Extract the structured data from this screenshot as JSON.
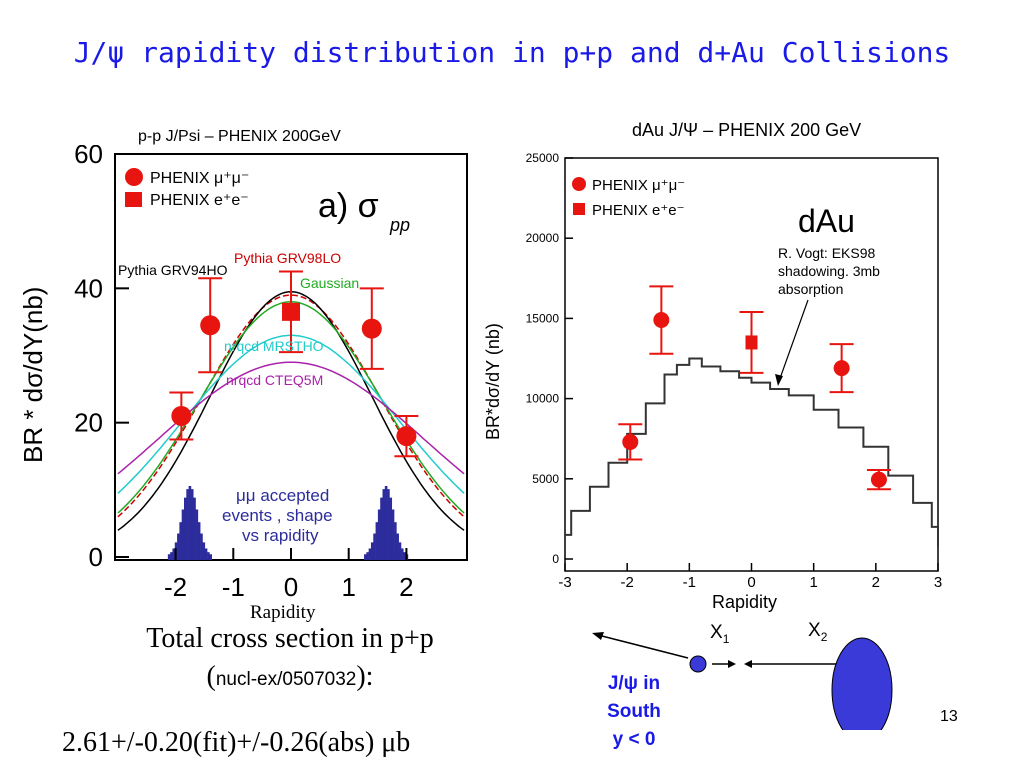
{
  "slide": {
    "title": "J/ψ rapidity distribution in p+p and d+Au Collisions",
    "page_number": "13"
  },
  "left_plot": {
    "caption": "p-p J/Psi – PHENIX 200GeV",
    "panel_label": "a) σ",
    "panel_sub": "pp",
    "legend": [
      {
        "label": "PHENIX μ⁺μ⁻",
        "marker": "circle"
      },
      {
        "label": "PHENIX e⁺e⁻",
        "marker": "square"
      }
    ],
    "curve_labels": [
      "Pythia GRV98LO",
      "Pythia GRV94HO",
      "Gaussian",
      "nrqcd MRSTHO",
      "nrqcd CTEQ5M"
    ],
    "acceptance_note": [
      "μμ accepted",
      "events , shape",
      "vs rapidity"
    ],
    "ylabel": "BR * dσ/dY(nb)",
    "xlabel": "Rapidity",
    "xticks": [
      "-2",
      "-1",
      "0",
      "1",
      "2"
    ],
    "yticks": [
      "0",
      "20",
      "40",
      "60"
    ]
  },
  "right_plot": {
    "title": "dAu J/Ψ – PHENIX 200 GeV",
    "panel_label": "dAu",
    "legend": [
      {
        "label": "PHENIX μ⁺μ⁻",
        "marker": "circle"
      },
      {
        "label": "PHENIX e⁺e⁻",
        "marker": "square"
      }
    ],
    "annotation": [
      "R. Vogt: EKS98",
      "shadowing. 3mb",
      "absorption"
    ],
    "ylabel": "BR*dσ/dY (nb)",
    "xlabel": "Rapidity",
    "xticks": [
      "-3",
      "-2",
      "-1",
      "0",
      "1",
      "2",
      "3"
    ],
    "yticks": [
      "0",
      "5000",
      "10000",
      "15000",
      "20000",
      "25000"
    ]
  },
  "chart_data": [
    {
      "type": "scatter",
      "title": "p-p J/Psi – PHENIX 200GeV",
      "xlabel": "Rapidity",
      "ylabel": "BR * dσ/dY(nb)",
      "xlim": [
        -3,
        3
      ],
      "ylim": [
        0,
        60
      ],
      "series": [
        {
          "name": "PHENIX μ⁺μ⁻",
          "x": [
            -1.9,
            -1.4,
            1.4,
            2.0
          ],
          "y": [
            21,
            34.5,
            34,
            18
          ],
          "err": [
            3.5,
            7,
            6,
            3
          ]
        },
        {
          "name": "PHENIX e⁺e⁻",
          "x": [
            0.0
          ],
          "y": [
            36.5
          ],
          "err": [
            6
          ]
        }
      ],
      "curves": [
        {
          "name": "Pythia GRV98LO",
          "color": "#cc0000",
          "peak": 39,
          "width": 1.55
        },
        {
          "name": "Pythia GRV94HO",
          "color": "#000000",
          "peak": 39.5,
          "width": 1.4
        },
        {
          "name": "Gaussian",
          "color": "#22aa22",
          "peak": 38,
          "width": 1.6
        },
        {
          "name": "nrqcd MRSTHO",
          "color": "#22cccc",
          "peak": 33,
          "width": 1.9
        },
        {
          "name": "nrqcd CTEQ5M",
          "color": "#aa22aa",
          "peak": 29,
          "width": 2.3
        }
      ]
    },
    {
      "type": "scatter",
      "title": "dAu J/Ψ – PHENIX 200 GeV",
      "xlabel": "Rapidity",
      "ylabel": "BR*dσ/dY (nb)",
      "xlim": [
        -3,
        3
      ],
      "ylim": [
        0,
        25000
      ],
      "series": [
        {
          "name": "PHENIX μ⁺μ⁻",
          "x": [
            -1.95,
            -1.45,
            1.45,
            2.05
          ],
          "y": [
            7300,
            14900,
            11900,
            4950
          ],
          "err": [
            1100,
            2100,
            1500,
            600
          ]
        },
        {
          "name": "PHENIX e⁺e⁻",
          "x": [
            0.0
          ],
          "y": [
            13500
          ],
          "err": [
            1900
          ]
        }
      ],
      "curve": {
        "name": "R. Vogt: EKS98 shadowing. 3mb absorption",
        "x": [
          -3,
          -2.9,
          -2.6,
          -2.3,
          -2.0,
          -1.7,
          -1.4,
          -1.2,
          -1.0,
          -0.8,
          -0.5,
          -0.2,
          0.0,
          0.3,
          0.6,
          1.0,
          1.4,
          1.8,
          2.2,
          2.6,
          2.9,
          3.0
        ],
        "y": [
          1500,
          3000,
          4500,
          6000,
          7800,
          9700,
          11500,
          12100,
          12500,
          12000,
          11700,
          11300,
          11000,
          10600,
          10200,
          9300,
          8200,
          7000,
          5200,
          3500,
          2000,
          800
        ]
      }
    }
  ],
  "bottom": {
    "total_line1": "Total cross section in p+p",
    "total_ref_open": "(",
    "total_ref": "nucl-ex/0507032",
    "total_ref_close": "):",
    "result": "2.61+/-0.20(fit)+/-0.26(abs) μb",
    "x1_label": "X",
    "x1_sub": "1",
    "x2_label": "X",
    "x2_sub": "2",
    "south_label": [
      "J/ψ in",
      "South",
      "y < 0"
    ]
  },
  "colors": {
    "title_blue": "#1a1ae6",
    "marker_red": "#e8140f",
    "nucleus_blue": "#3a3ad8",
    "hist_blue": "#2c2c9c"
  }
}
